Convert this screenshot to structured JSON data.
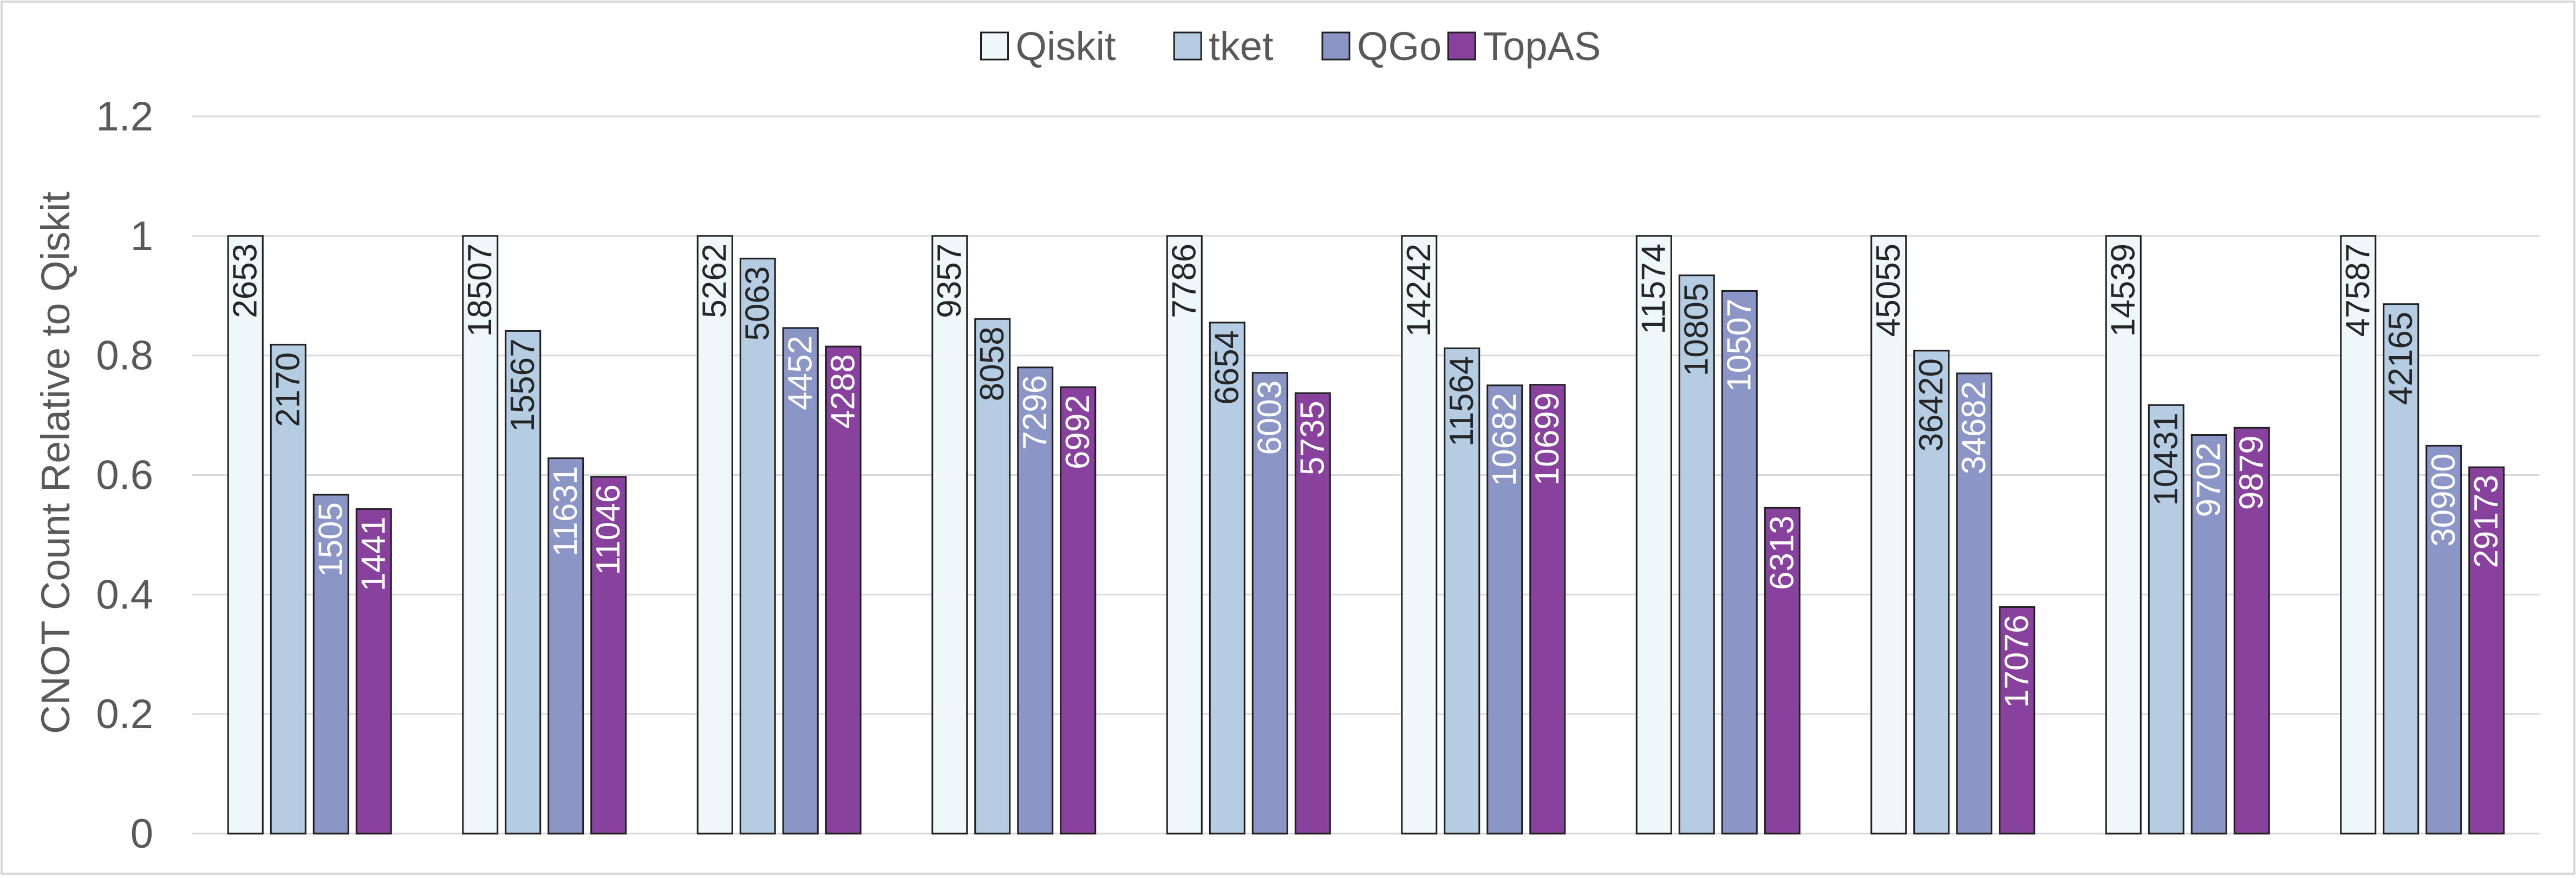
{
  "colors": {
    "background": "#ffffff",
    "frame": "#d9d9d9",
    "gridline": "#d9d9d9",
    "axis_text": "#595959",
    "bar_outline": "#1f1f1f"
  },
  "chart_data": {
    "type": "bar",
    "title": "",
    "xlabel": "",
    "ylabel": "CNOT Count Relative to Qiskit",
    "ylim": [
      0,
      1.2
    ],
    "yticks": [
      0,
      0.2,
      0.4,
      0.6,
      0.8,
      1,
      1.2
    ],
    "ytick_labels": [
      "0",
      "0.2",
      "0.4",
      "0.6",
      "0.8",
      "1",
      "1.2"
    ],
    "grid": true,
    "legend_position": "top-center",
    "categories": [
      "",
      "",
      "",
      "",
      "",
      "",
      "",
      "",
      "",
      ""
    ],
    "series": [
      {
        "name": "Qiskit",
        "color": "#eef8fa",
        "label_color": "#262626",
        "values": [
          1,
          1,
          1,
          1,
          1,
          1,
          1,
          1,
          1,
          1
        ],
        "labels": [
          "2653",
          "18507",
          "5262",
          "9357",
          "7786",
          "14242",
          "11574",
          "45055",
          "14539",
          "47587"
        ]
      },
      {
        "name": "tket",
        "color": "#b4cde3",
        "label_color": "#262626",
        "values": [
          0.818,
          0.841,
          0.962,
          0.861,
          0.855,
          0.812,
          0.934,
          0.808,
          0.717,
          0.886
        ],
        "labels": [
          "2170",
          "15567",
          "5063",
          "8058",
          "6654",
          "11564",
          "10805",
          "36420",
          "10431",
          "42165"
        ]
      },
      {
        "name": "QGo",
        "color": "#8b96c7",
        "label_color": "#ffffff",
        "values": [
          0.567,
          0.628,
          0.846,
          0.78,
          0.771,
          0.75,
          0.908,
          0.77,
          0.667,
          0.649
        ],
        "labels": [
          "1505",
          "11631",
          "4452",
          "7296",
          "6003",
          "10682",
          "10507",
          "34682",
          "9702",
          "30900"
        ]
      },
      {
        "name": "TopAS",
        "color": "#88419d",
        "label_color": "#ffffff",
        "values": [
          0.543,
          0.597,
          0.815,
          0.747,
          0.737,
          0.751,
          0.545,
          0.379,
          0.679,
          0.613
        ],
        "labels": [
          "1441",
          "11046",
          "4288",
          "6992",
          "5735",
          "10699",
          "6313",
          "17076",
          "9879",
          "29173"
        ]
      }
    ]
  }
}
